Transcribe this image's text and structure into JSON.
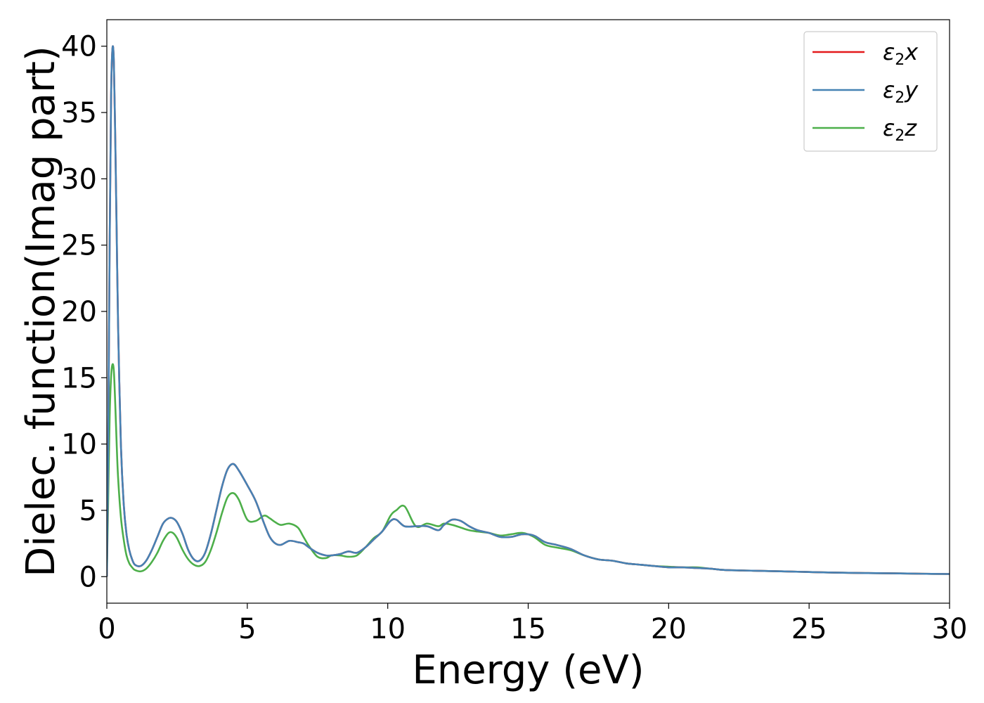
{
  "chart_data": {
    "type": "line",
    "title": "",
    "xlabel": "Energy (eV)",
    "ylabel": "Dielec. function(Imag part)",
    "xlim": [
      0,
      30
    ],
    "ylim": [
      -2,
      42
    ],
    "xticks": [
      0,
      5,
      10,
      15,
      20,
      25,
      30
    ],
    "yticks": [
      0,
      5,
      10,
      15,
      20,
      25,
      30,
      35,
      40
    ],
    "grid": false,
    "legend_position": "top-right",
    "series": [
      {
        "name": "ε₂x",
        "legend_base": "ε",
        "legend_sub": "2",
        "legend_tail": "x",
        "color": "#e41a1c",
        "x": [
          0,
          0.05,
          0.1,
          0.15,
          0.2,
          0.25,
          0.3,
          0.35,
          0.4,
          0.5,
          0.6,
          0.7,
          0.8,
          0.9,
          1.0,
          1.2,
          1.4,
          1.6,
          1.8,
          2.0,
          2.2,
          2.35,
          2.5,
          2.7,
          2.9,
          3.1,
          3.3,
          3.5,
          3.7,
          3.9,
          4.1,
          4.3,
          4.5,
          4.7,
          5.0,
          5.3,
          5.6,
          5.8,
          6.0,
          6.2,
          6.5,
          6.8,
          7.0,
          7.2,
          7.5,
          7.8,
          8.0,
          8.3,
          8.6,
          8.9,
          9.2,
          9.5,
          9.8,
          10.1,
          10.3,
          10.6,
          11.0,
          11.4,
          11.8,
          12.0,
          12.3,
          12.6,
          12.9,
          13.2,
          13.6,
          14.0,
          14.4,
          14.8,
          15.2,
          15.6,
          16.0,
          16.5,
          17.0,
          17.5,
          18.0,
          18.5,
          19.0,
          19.5,
          20.0,
          20.5,
          21.0,
          21.5,
          22.0,
          23.0,
          24.0,
          25.0,
          26.0,
          27.0,
          28.0,
          29.0,
          30.0
        ],
        "y": [
          0,
          10,
          25,
          36,
          39.8,
          38.8,
          33,
          26,
          19,
          10,
          5.5,
          3.2,
          2.0,
          1.3,
          0.9,
          0.8,
          1.2,
          2.0,
          3.0,
          4.0,
          4.4,
          4.4,
          4.1,
          3.2,
          2.0,
          1.3,
          1.2,
          1.8,
          3.2,
          5.0,
          6.8,
          8.1,
          8.5,
          8.0,
          6.9,
          5.7,
          4.0,
          3.0,
          2.5,
          2.4,
          2.7,
          2.6,
          2.5,
          2.2,
          1.8,
          1.6,
          1.6,
          1.7,
          1.9,
          1.8,
          2.2,
          2.8,
          3.4,
          4.2,
          4.3,
          3.8,
          3.8,
          3.8,
          3.5,
          3.9,
          4.3,
          4.2,
          3.8,
          3.5,
          3.3,
          3.0,
          3.0,
          3.2,
          3.1,
          2.6,
          2.4,
          2.1,
          1.6,
          1.3,
          1.2,
          1.0,
          0.9,
          0.8,
          0.7,
          0.7,
          0.65,
          0.6,
          0.5,
          0.45,
          0.4,
          0.35,
          0.3,
          0.27,
          0.25,
          0.22,
          0.2
        ]
      },
      {
        "name": "ε₂y",
        "legend_base": "ε",
        "legend_sub": "2",
        "legend_tail": "y",
        "color": "#4682b4",
        "x": [
          0,
          0.05,
          0.1,
          0.15,
          0.2,
          0.25,
          0.3,
          0.35,
          0.4,
          0.5,
          0.6,
          0.7,
          0.8,
          0.9,
          1.0,
          1.2,
          1.4,
          1.6,
          1.8,
          2.0,
          2.2,
          2.35,
          2.5,
          2.7,
          2.9,
          3.1,
          3.3,
          3.5,
          3.7,
          3.9,
          4.1,
          4.3,
          4.5,
          4.7,
          5.0,
          5.3,
          5.6,
          5.8,
          6.0,
          6.2,
          6.5,
          6.8,
          7.0,
          7.2,
          7.5,
          7.8,
          8.0,
          8.3,
          8.6,
          8.9,
          9.2,
          9.5,
          9.8,
          10.1,
          10.3,
          10.6,
          11.0,
          11.4,
          11.8,
          12.0,
          12.3,
          12.6,
          12.9,
          13.2,
          13.6,
          14.0,
          14.4,
          14.8,
          15.2,
          15.6,
          16.0,
          16.5,
          17.0,
          17.5,
          18.0,
          18.5,
          19.0,
          19.5,
          20.0,
          20.5,
          21.0,
          21.5,
          22.0,
          23.0,
          24.0,
          25.0,
          26.0,
          27.0,
          28.0,
          29.0,
          30.0
        ],
        "y": [
          0,
          10,
          25,
          36,
          39.8,
          38.8,
          33,
          26,
          19,
          10,
          5.5,
          3.2,
          2.0,
          1.3,
          0.9,
          0.8,
          1.2,
          2.0,
          3.0,
          4.0,
          4.4,
          4.4,
          4.1,
          3.2,
          2.0,
          1.3,
          1.2,
          1.8,
          3.2,
          5.0,
          6.8,
          8.1,
          8.5,
          8.0,
          6.9,
          5.7,
          4.0,
          3.0,
          2.5,
          2.4,
          2.7,
          2.6,
          2.5,
          2.2,
          1.8,
          1.6,
          1.6,
          1.7,
          1.9,
          1.8,
          2.2,
          2.8,
          3.4,
          4.2,
          4.3,
          3.8,
          3.8,
          3.8,
          3.5,
          3.9,
          4.3,
          4.2,
          3.8,
          3.5,
          3.3,
          3.0,
          3.0,
          3.2,
          3.1,
          2.6,
          2.4,
          2.1,
          1.6,
          1.3,
          1.2,
          1.0,
          0.9,
          0.8,
          0.7,
          0.7,
          0.65,
          0.6,
          0.5,
          0.45,
          0.4,
          0.35,
          0.3,
          0.27,
          0.25,
          0.22,
          0.2
        ]
      },
      {
        "name": "ε₂z",
        "legend_base": "ε",
        "legend_sub": "2",
        "legend_tail": "z",
        "color": "#4daf4a",
        "x": [
          0,
          0.05,
          0.1,
          0.15,
          0.2,
          0.25,
          0.3,
          0.35,
          0.4,
          0.5,
          0.6,
          0.7,
          0.8,
          0.9,
          1.0,
          1.2,
          1.4,
          1.6,
          1.8,
          2.0,
          2.2,
          2.35,
          2.5,
          2.7,
          2.9,
          3.1,
          3.3,
          3.5,
          3.7,
          3.9,
          4.1,
          4.3,
          4.5,
          4.7,
          5.0,
          5.3,
          5.6,
          5.8,
          6.0,
          6.2,
          6.5,
          6.8,
          7.0,
          7.2,
          7.5,
          7.8,
          8.0,
          8.3,
          8.6,
          8.9,
          9.2,
          9.5,
          9.8,
          10.1,
          10.3,
          10.6,
          11.0,
          11.4,
          11.8,
          12.0,
          12.3,
          12.6,
          12.9,
          13.2,
          13.6,
          14.0,
          14.4,
          14.8,
          15.2,
          15.6,
          16.0,
          16.5,
          17.0,
          17.5,
          18.0,
          18.5,
          19.0,
          19.5,
          20.0,
          20.5,
          21.0,
          21.5,
          22.0,
          23.0,
          24.0,
          25.0,
          26.0,
          27.0,
          28.0,
          29.0,
          30.0
        ],
        "y": [
          0,
          6,
          12,
          15,
          16,
          15.5,
          13,
          10,
          7.5,
          4.5,
          2.8,
          1.6,
          1.0,
          0.7,
          0.5,
          0.4,
          0.6,
          1.1,
          1.8,
          2.7,
          3.3,
          3.3,
          2.9,
          2.0,
          1.3,
          0.9,
          0.8,
          1.1,
          2.0,
          3.3,
          4.8,
          6.0,
          6.3,
          5.8,
          4.3,
          4.2,
          4.6,
          4.4,
          4.1,
          3.9,
          4.0,
          3.7,
          3.0,
          2.3,
          1.5,
          1.4,
          1.6,
          1.6,
          1.5,
          1.6,
          2.2,
          2.9,
          3.4,
          4.6,
          5.0,
          5.3,
          3.8,
          4.0,
          3.8,
          4.0,
          3.9,
          3.7,
          3.5,
          3.4,
          3.3,
          3.1,
          3.2,
          3.3,
          3.0,
          2.4,
          2.2,
          2.0,
          1.6,
          1.3,
          1.2,
          1.0,
          0.9,
          0.8,
          0.75,
          0.7,
          0.7,
          0.6,
          0.5,
          0.45,
          0.4,
          0.35,
          0.3,
          0.27,
          0.25,
          0.22,
          0.2
        ]
      }
    ]
  }
}
